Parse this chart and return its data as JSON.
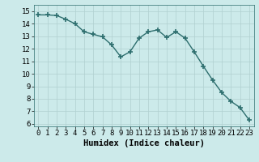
{
  "x": [
    0,
    1,
    2,
    3,
    4,
    5,
    6,
    7,
    8,
    9,
    10,
    11,
    12,
    13,
    14,
    15,
    16,
    17,
    18,
    19,
    20,
    21,
    22,
    23
  ],
  "y": [
    14.7,
    14.7,
    14.65,
    14.35,
    14.0,
    13.35,
    13.15,
    12.95,
    12.3,
    11.35,
    11.75,
    12.85,
    13.35,
    13.5,
    12.9,
    13.35,
    12.85,
    11.75,
    10.6,
    9.5,
    8.5,
    7.8,
    7.3,
    6.3
  ],
  "line_color": "#2d6e6e",
  "marker": "+",
  "marker_size": 4,
  "marker_color": "#2d6e6e",
  "bg_color": "#cceaea",
  "grid_color": "#b0d0d0",
  "xlabel": "Humidex (Indice chaleur)",
  "xlabel_fontsize": 7.5,
  "ylabel_ticks": [
    6,
    7,
    8,
    9,
    10,
    11,
    12,
    13,
    14,
    15
  ],
  "xlim": [
    -0.5,
    23.5
  ],
  "ylim": [
    5.8,
    15.5
  ],
  "xtick_labels": [
    "0",
    "1",
    "2",
    "3",
    "4",
    "5",
    "6",
    "7",
    "8",
    "9",
    "10",
    "11",
    "12",
    "13",
    "14",
    "15",
    "16",
    "17",
    "18",
    "19",
    "20",
    "21",
    "22",
    "23"
  ],
  "tick_fontsize": 6.5,
  "line_width": 1.0
}
